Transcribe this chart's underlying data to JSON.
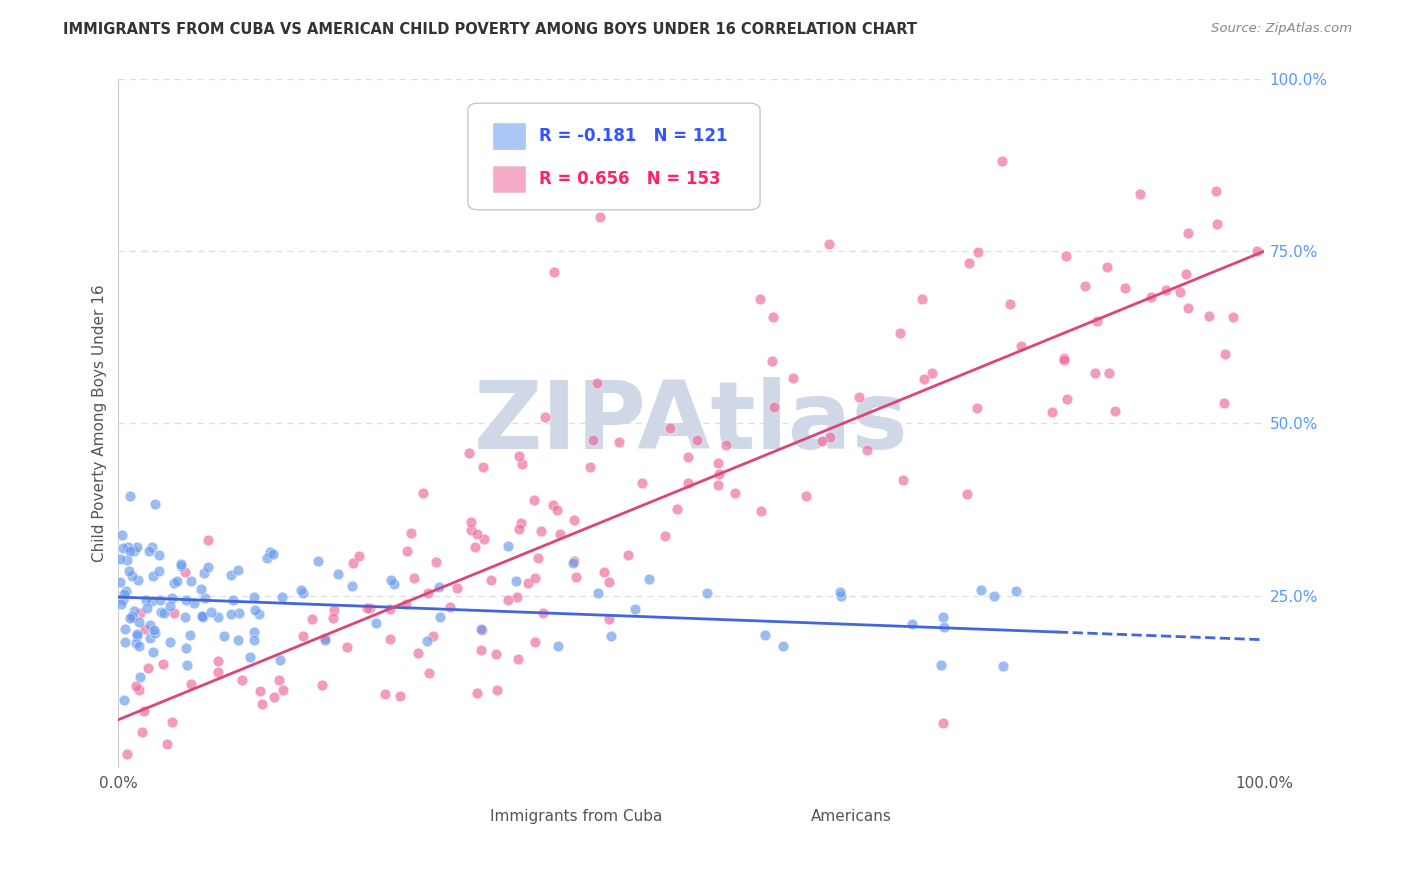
{
  "title": "IMMIGRANTS FROM CUBA VS AMERICAN CHILD POVERTY AMONG BOYS UNDER 16 CORRELATION CHART",
  "source": "Source: ZipAtlas.com",
  "ylabel": "Child Poverty Among Boys Under 16",
  "y_tick_positions": [
    0.25,
    0.5,
    0.75,
    1.0
  ],
  "y_tick_labels": [
    "25.0%",
    "50.0%",
    "75.0%",
    "100.0%"
  ],
  "x_tick_labels": [
    "0.0%",
    "100.0%"
  ],
  "series": [
    {
      "label": "Immigrants from Cuba",
      "color": "#6699ee",
      "R": "-0.181",
      "N": "121",
      "line_style": "solid_then_dashed"
    },
    {
      "label": "Americans",
      "color": "#ee6699",
      "R": "0.656",
      "N": "153",
      "line_style": "solid"
    }
  ],
  "blue_R_color": "#3355ff",
  "pink_R_color": "#ff2266",
  "watermark_text": "ZIPAtlas",
  "watermark_color": "#d0d8e8",
  "bg_color": "#ffffff",
  "grid_color": "#dddddd",
  "blue_line_color": "#4466dd",
  "pink_line_color": "#dd4477",
  "tick_color": "#5599ff",
  "axis_label_color": "#555555",
  "title_color": "#333333",
  "source_color": "#888888",
  "legend_box_color": "#aaaaaa",
  "bottom_legend_box_color": "#aaaacc",
  "seed": 42
}
